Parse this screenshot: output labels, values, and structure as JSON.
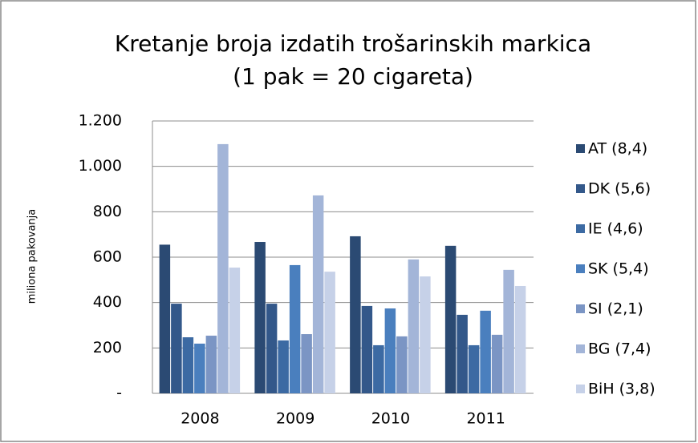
{
  "chart_data": {
    "type": "bar",
    "title": "Kretanje broja izdatih trošarinskih markica",
    "subtitle": "(1 pak = 20 cigareta)",
    "y_label": "miliona pakovanja",
    "categories": [
      "2008",
      "2009",
      "2010",
      "2011"
    ],
    "series": [
      {
        "name": "AT (8,4)",
        "color": "#2b4a73",
        "values": [
          655,
          667,
          692,
          650
        ]
      },
      {
        "name": "DK (5,6)",
        "color": "#33588a",
        "values": [
          395,
          395,
          385,
          346
        ]
      },
      {
        "name": "IE (4,6)",
        "color": "#3c6aa3",
        "values": [
          247,
          233,
          212,
          212
        ]
      },
      {
        "name": "SK (5,4)",
        "color": "#4a7fbe",
        "values": [
          219,
          565,
          374,
          364
        ]
      },
      {
        "name": "SI (2,1)",
        "color": "#7b95c4",
        "values": [
          254,
          261,
          251,
          258
        ]
      },
      {
        "name": "BG (7,4)",
        "color": "#a3b5d8",
        "values": [
          1098,
          872,
          590,
          544
        ]
      },
      {
        "name": "BiH (3,8)",
        "color": "#c6d1e8",
        "values": [
          554,
          536,
          515,
          473
        ]
      }
    ],
    "ylim": [
      0,
      1200
    ],
    "yticks": [
      {
        "value": 0,
        "label": "-"
      },
      200,
      400,
      600,
      800,
      {
        "value": 1000,
        "label": "1.000"
      },
      {
        "value": 1200,
        "label": "1.200"
      }
    ],
    "grid": true,
    "legend": "right"
  }
}
